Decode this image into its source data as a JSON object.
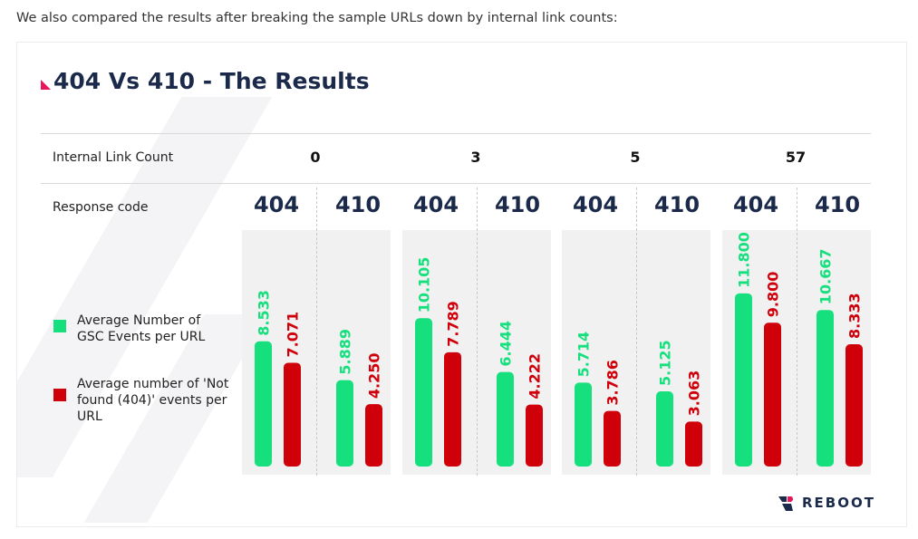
{
  "intro_text": "We also compared the results after breaking the sample URLs down by internal link counts:",
  "brand": "REBOOT",
  "colors": {
    "green": "#16e07e",
    "red": "#d0000b",
    "navy": "#1b2a4a",
    "accent": "#e8175d"
  },
  "chart_data": {
    "type": "bar",
    "title": "404 Vs 410 - The Results",
    "row_labels": {
      "link_count": "Internal Link Count",
      "response_code": "Response code"
    },
    "groups": [
      {
        "link_count": "0",
        "subgroups": [
          {
            "code": "404",
            "values": {
              "gsc": 8.533,
              "notfound": 7.071
            },
            "labels": {
              "gsc": "8.533",
              "notfound": "7.071"
            }
          },
          {
            "code": "410",
            "values": {
              "gsc": 5.889,
              "notfound": 4.25
            },
            "labels": {
              "gsc": "5.889",
              "notfound": "4.250"
            }
          }
        ]
      },
      {
        "link_count": "3",
        "subgroups": [
          {
            "code": "404",
            "values": {
              "gsc": 10.105,
              "notfound": 7.789
            },
            "labels": {
              "gsc": "10.105",
              "notfound": "7.789"
            }
          },
          {
            "code": "410",
            "values": {
              "gsc": 6.444,
              "notfound": 4.222
            },
            "labels": {
              "gsc": "6.444",
              "notfound": "4.222"
            }
          }
        ]
      },
      {
        "link_count": "5",
        "subgroups": [
          {
            "code": "404",
            "values": {
              "gsc": 5.714,
              "notfound": 3.786
            },
            "labels": {
              "gsc": "5.714",
              "notfound": "3.786"
            }
          },
          {
            "code": "410",
            "values": {
              "gsc": 5.125,
              "notfound": 3.063
            },
            "labels": {
              "gsc": "5.125",
              "notfound": "3.063"
            }
          }
        ]
      },
      {
        "link_count": "57",
        "subgroups": [
          {
            "code": "404",
            "values": {
              "gsc": 11.8,
              "notfound": 9.8
            },
            "labels": {
              "gsc": "11.800",
              "notfound": "9.800"
            }
          },
          {
            "code": "410",
            "values": {
              "gsc": 10.667,
              "notfound": 8.333
            },
            "labels": {
              "gsc": "10.667",
              "notfound": "8.333"
            }
          }
        ]
      }
    ],
    "legend": [
      {
        "key": "gsc",
        "name": "Average Number of GSC Events per URL",
        "color": "#16e07e"
      },
      {
        "key": "notfound",
        "name": "Average number of 'Not found (404)' events per URL",
        "color": "#d0000b"
      }
    ],
    "legend_placement": "left",
    "ylim": [
      0,
      12
    ],
    "grid": false
  }
}
